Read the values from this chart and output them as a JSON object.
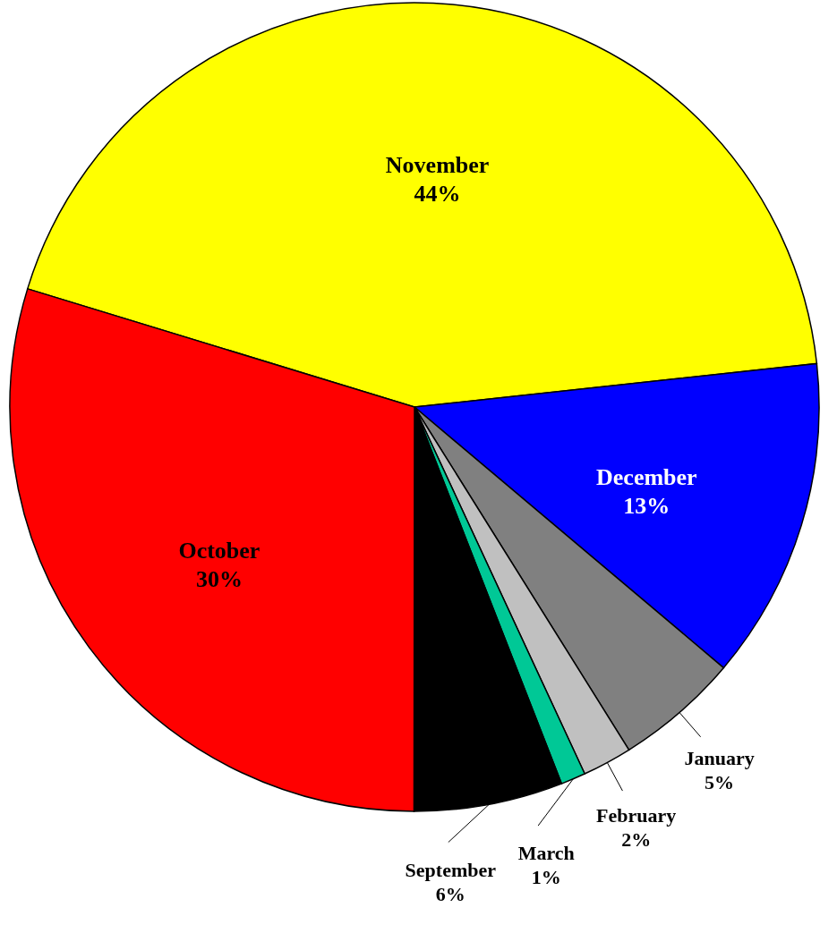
{
  "chart_data": {
    "type": "pie",
    "categories": [
      "November",
      "December",
      "January",
      "February",
      "March",
      "September",
      "October"
    ],
    "values": [
      44,
      13,
      5,
      2,
      1,
      6,
      30
    ],
    "value_labels": [
      "44%",
      "13%",
      "5%",
      "2%",
      "1%",
      "6%",
      "30%"
    ],
    "colors": [
      "#ffff00",
      "#0000ff",
      "#808080",
      "#c0c0c0",
      "#00c896",
      "#000000",
      "#ff0000"
    ]
  }
}
